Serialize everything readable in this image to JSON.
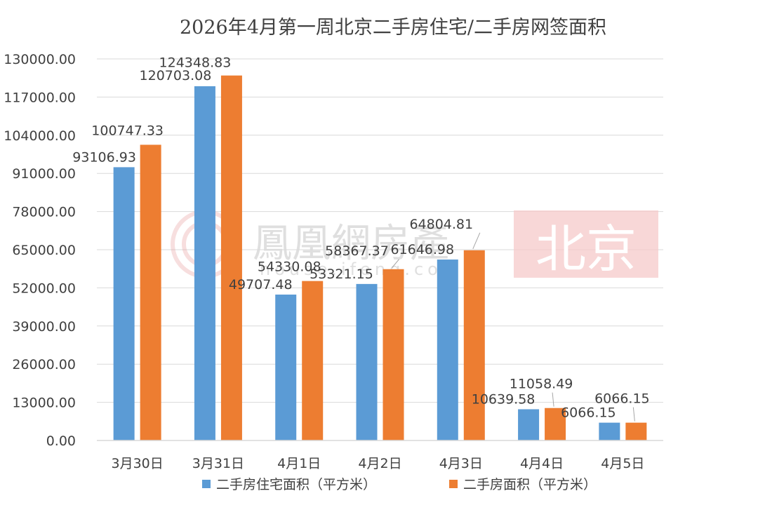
{
  "chart_data": {
    "type": "bar",
    "title": "2026年4月第一周北京二手房住宅/二手房网签面积",
    "categories": [
      "3月30日",
      "3月31日",
      "4月1日",
      "4月2日",
      "4月3日",
      "4月4日",
      "4月5日"
    ],
    "series": [
      {
        "name": "二手房住宅面积（平方米）",
        "color": "#5B9BD5",
        "values": [
          93106.93,
          120703.08,
          49707.48,
          53321.15,
          61646.98,
          10639.58,
          6066.15
        ],
        "labels": [
          "93106.93",
          "120703.08",
          "49707.48",
          "53321.15",
          "61646.98",
          "10639.58",
          "6066.15"
        ]
      },
      {
        "name": "二手房面积（平方米）",
        "color": "#ED7D31",
        "values": [
          100747.33,
          124348.83,
          54330.08,
          58367.37,
          64804.81,
          11058.49,
          6066.15
        ],
        "labels": [
          "100747.33",
          "124348.83",
          "54330.08",
          "58367.37",
          "64804.81",
          "11058.49",
          "6066.15"
        ]
      }
    ],
    "yticks": [
      "0.00",
      "13000.00",
      "26000.00",
      "39000.00",
      "52000.00",
      "65000.00",
      "78000.00",
      "91000.00",
      "104000.00",
      "117000.00",
      "130000.00"
    ],
    "ylim": [
      0,
      130000
    ],
    "grid": true,
    "legend_position": "bottom"
  },
  "watermark": {
    "name": "鳳凰網房產",
    "url": "house.ifeng.com",
    "city": "北京",
    "city_color": "#F6C9C9"
  }
}
